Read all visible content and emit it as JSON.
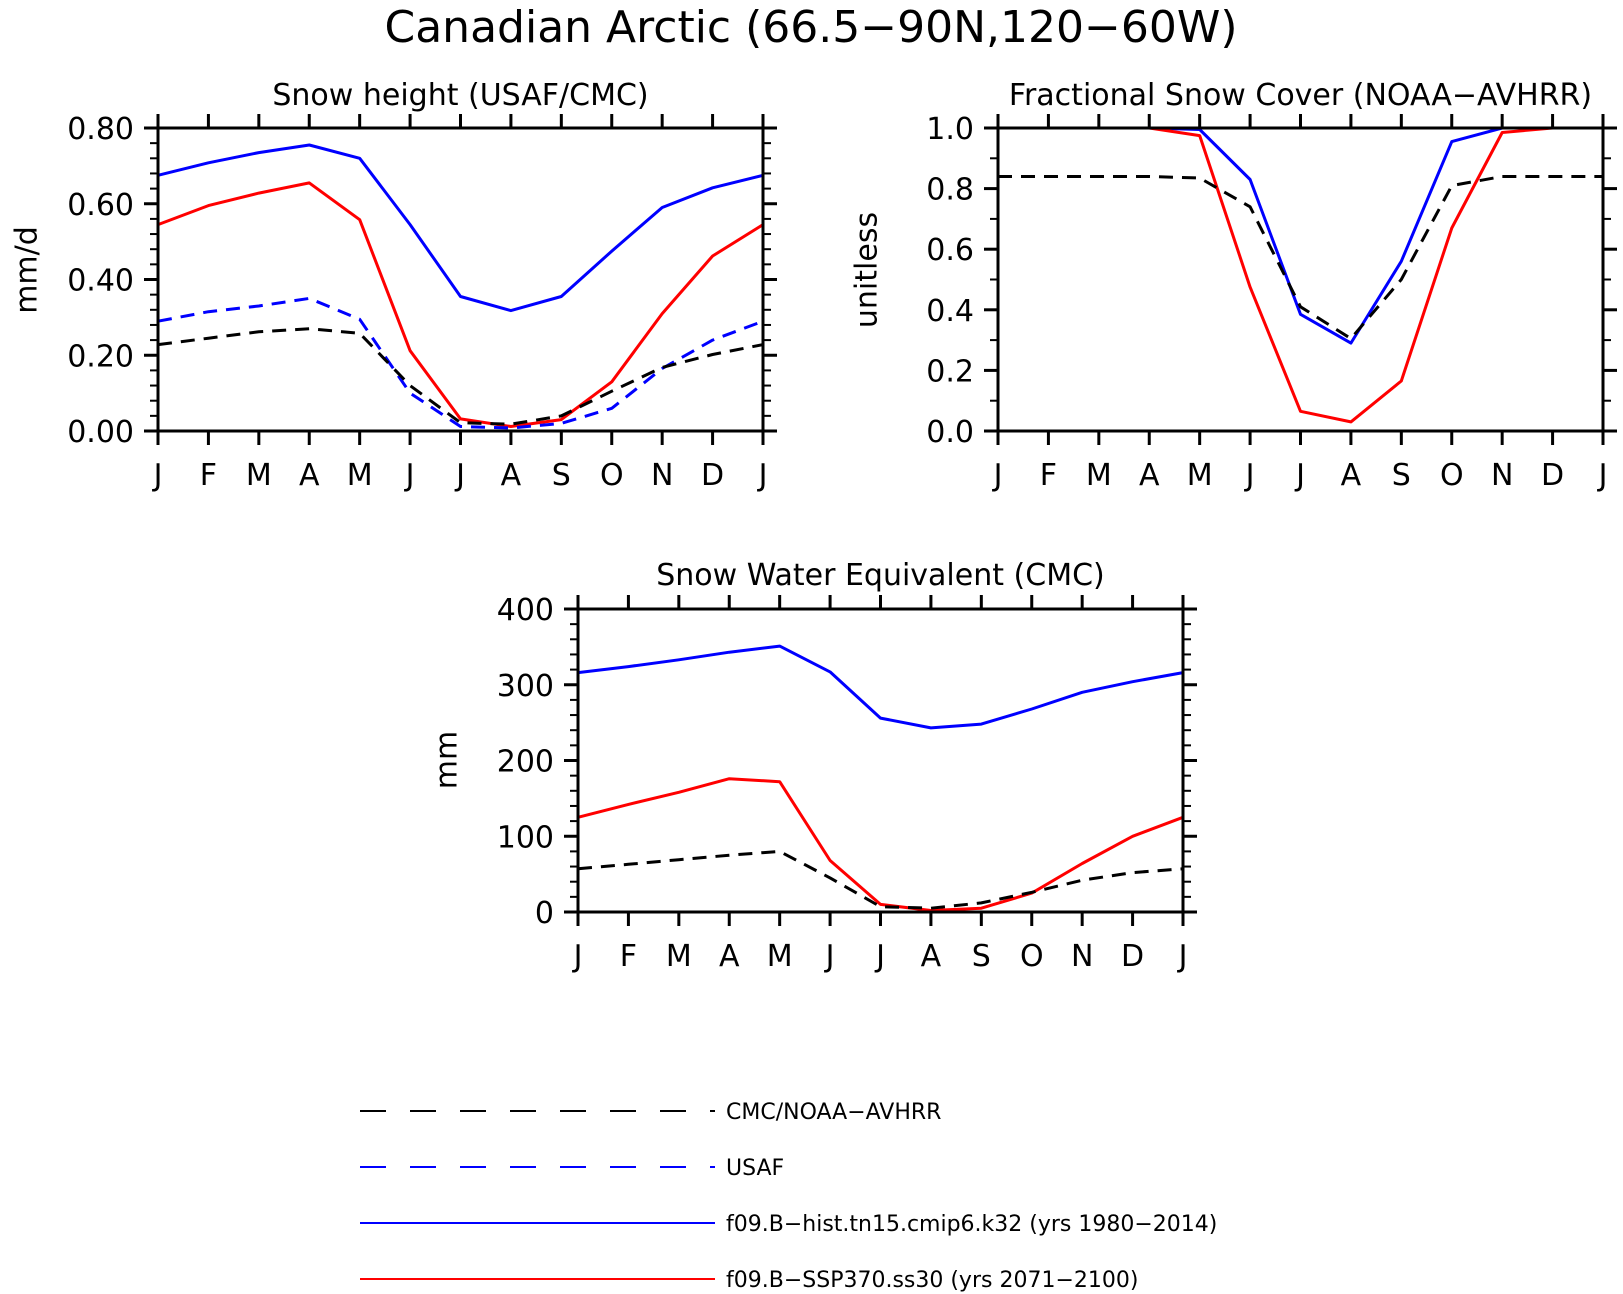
{
  "title": "Canadian Arctic (66.5−90N,120−60W)",
  "legend": [
    {
      "label": "CMC/NOAA−AVHRR",
      "color": "#000000",
      "style": "dashed"
    },
    {
      "label": "USAF",
      "color": "#0000ff",
      "style": "dashed"
    },
    {
      "label": "f09.B−hist.tn15.cmip6.k32 (yrs 1980−2014)",
      "color": "#0000ff",
      "style": "solid"
    },
    {
      "label": "f09.B−SSP370.ss30 (yrs 2071−2100)",
      "color": "#ff0000",
      "style": "solid"
    }
  ],
  "chart_data": [
    {
      "type": "line",
      "title": "Snow height (USAF/CMC)",
      "xlabel": "",
      "ylabel": "mm/d",
      "categories": [
        "J",
        "F",
        "M",
        "A",
        "M",
        "J",
        "J",
        "A",
        "S",
        "O",
        "N",
        "D",
        "J"
      ],
      "ylim": [
        0,
        0.8
      ],
      "yticks": [
        "0.00",
        "0.20",
        "0.40",
        "0.60",
        "0.80"
      ],
      "grid": false,
      "series": [
        {
          "name": "f09.B−hist.tn15.cmip6.k32 (yrs 1980−2014)",
          "color": "#0000ff",
          "style": "solid",
          "values": [
            0.675,
            0.708,
            0.735,
            0.755,
            0.72,
            0.545,
            0.355,
            0.318,
            0.355,
            0.475,
            0.59,
            0.642,
            0.675
          ]
        },
        {
          "name": "f09.B−SSP370.ss30 (yrs 2071−2100)",
          "color": "#ff0000",
          "style": "solid",
          "values": [
            0.545,
            0.595,
            0.628,
            0.655,
            0.558,
            0.212,
            0.032,
            0.012,
            0.03,
            0.13,
            0.31,
            0.462,
            0.545
          ]
        },
        {
          "name": "USAF",
          "color": "#0000ff",
          "style": "dashed",
          "values": [
            0.29,
            0.315,
            0.33,
            0.35,
            0.295,
            0.1,
            0.012,
            0.008,
            0.02,
            0.06,
            0.165,
            0.24,
            0.29
          ]
        },
        {
          "name": "CMC/NOAA−AVHRR",
          "color": "#000000",
          "style": "dashed",
          "values": [
            0.228,
            0.245,
            0.262,
            0.27,
            0.258,
            0.12,
            0.022,
            0.018,
            0.04,
            0.105,
            0.168,
            0.202,
            0.228
          ]
        }
      ]
    },
    {
      "type": "line",
      "title": "Fractional Snow Cover (NOAA−AVHRR)",
      "xlabel": "",
      "ylabel": "unitless",
      "categories": [
        "J",
        "F",
        "M",
        "A",
        "M",
        "J",
        "J",
        "A",
        "S",
        "O",
        "N",
        "D",
        "J"
      ],
      "ylim": [
        0,
        1.0
      ],
      "yticks": [
        "0.0",
        "0.2",
        "0.4",
        "0.6",
        "0.8",
        "1.0"
      ],
      "grid": false,
      "series": [
        {
          "name": "f09.B−hist.tn15.cmip6.k32 (yrs 1980−2014)",
          "color": "#0000ff",
          "style": "solid",
          "values": [
            1.0,
            1.0,
            1.0,
            1.0,
            0.995,
            0.83,
            0.385,
            0.29,
            0.56,
            0.955,
            1.0,
            1.0,
            1.0
          ]
        },
        {
          "name": "f09.B−SSP370.ss30 (yrs 2071−2100)",
          "color": "#ff0000",
          "style": "solid",
          "values": [
            1.0,
            1.0,
            1.0,
            1.0,
            0.975,
            0.475,
            0.065,
            0.03,
            0.165,
            0.67,
            0.985,
            1.0,
            1.0
          ]
        },
        {
          "name": "CMC/NOAA−AVHRR",
          "color": "#000000",
          "style": "dashed",
          "values": [
            0.84,
            0.84,
            0.84,
            0.84,
            0.835,
            0.74,
            0.41,
            0.305,
            0.5,
            0.81,
            0.84,
            0.84,
            0.84
          ]
        }
      ]
    },
    {
      "type": "line",
      "title": "Snow Water Equivalent (CMC)",
      "xlabel": "",
      "ylabel": "mm",
      "categories": [
        "J",
        "F",
        "M",
        "A",
        "M",
        "J",
        "J",
        "A",
        "S",
        "O",
        "N",
        "D",
        "J"
      ],
      "ylim": [
        0,
        400
      ],
      "yticks": [
        "0",
        "100",
        "200",
        "300",
        "400"
      ],
      "grid": false,
      "series": [
        {
          "name": "f09.B−hist.tn15.cmip6.k32 (yrs 1980−2014)",
          "color": "#0000ff",
          "style": "solid",
          "values": [
            316,
            324,
            333,
            343,
            351,
            317,
            256,
            243,
            248,
            268,
            290,
            304,
            316
          ]
        },
        {
          "name": "f09.B−SSP370.ss30 (yrs 2071−2100)",
          "color": "#ff0000",
          "style": "solid",
          "values": [
            125,
            142,
            158,
            176,
            172,
            68,
            10,
            2,
            5,
            25,
            64,
            100,
            125
          ]
        },
        {
          "name": "CMC/NOAA−AVHRR",
          "color": "#000000",
          "style": "dashed",
          "values": [
            57,
            63,
            69,
            75,
            80,
            45,
            7,
            5,
            12,
            26,
            42,
            52,
            57
          ]
        }
      ]
    }
  ]
}
